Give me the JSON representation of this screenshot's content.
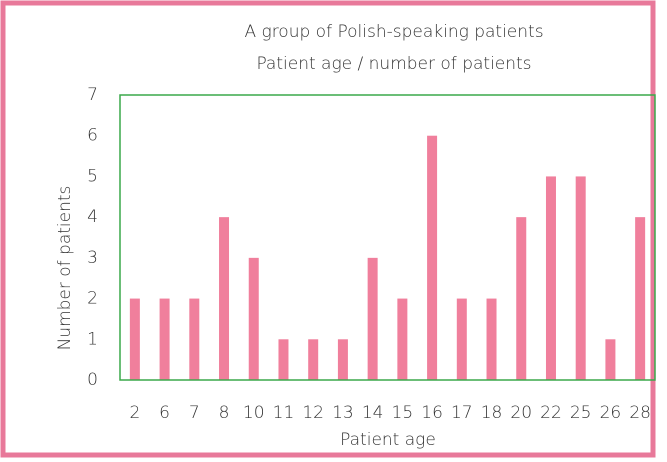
{
  "chart_data": {
    "type": "bar",
    "title": "A group of Polish-speaking patients",
    "subtitle": "Patient age / number of patients",
    "x_label": "Patient age",
    "y_label": "Number of patients",
    "categories": [
      "2",
      "6",
      "7",
      "8",
      "10",
      "11",
      "12",
      "13",
      "14",
      "15",
      "16",
      "17",
      "18",
      "20",
      "22",
      "25",
      "26",
      "28"
    ],
    "values": [
      2,
      2,
      2,
      4,
      3,
      1,
      1,
      1,
      3,
      2,
      6,
      2,
      2,
      4,
      5,
      5,
      1,
      4
    ],
    "color": "#f07f9c",
    "ylim": [
      0,
      7
    ],
    "yticks": [
      0,
      1,
      2,
      3,
      4,
      5,
      6,
      7
    ],
    "grid": false
  }
}
